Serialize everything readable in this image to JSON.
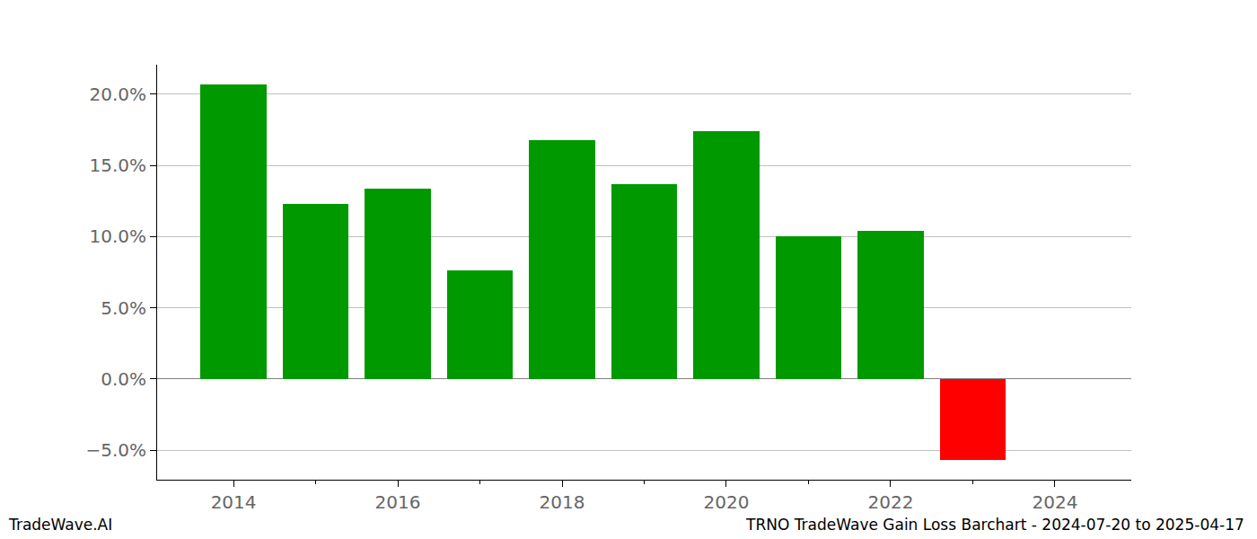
{
  "chart_data": {
    "type": "bar",
    "x": [
      2014,
      2015,
      2016,
      2017,
      2018,
      2019,
      2020,
      2021,
      2022,
      2023
    ],
    "values": [
      20.7,
      12.3,
      13.4,
      7.6,
      16.8,
      13.7,
      17.4,
      10.0,
      10.4,
      -5.7
    ],
    "colors": [
      "#009900",
      "#009900",
      "#009900",
      "#009900",
      "#009900",
      "#009900",
      "#009900",
      "#009900",
      "#009900",
      "#ff0000"
    ],
    "xlim": [
      2013.07,
      2024.93
    ],
    "xticks": [
      2014,
      2016,
      2018,
      2020,
      2022,
      2024
    ],
    "ylim": [
      -7.07,
      22.08
    ],
    "yticks": [
      {
        "value": -5,
        "label": "−5.0%"
      },
      {
        "value": 0,
        "label": "0.0%"
      },
      {
        "value": 5,
        "label": "5.0%"
      },
      {
        "value": 10,
        "label": "10.0%"
      },
      {
        "value": 15,
        "label": "15.0%"
      },
      {
        "value": 20,
        "label": "20.0%"
      }
    ],
    "grid": true,
    "annotations": [
      "TradeWave.AI",
      "TRNO TradeWave Gain Loss Barchart - 2024-07-20 to 2025-04-17"
    ]
  }
}
